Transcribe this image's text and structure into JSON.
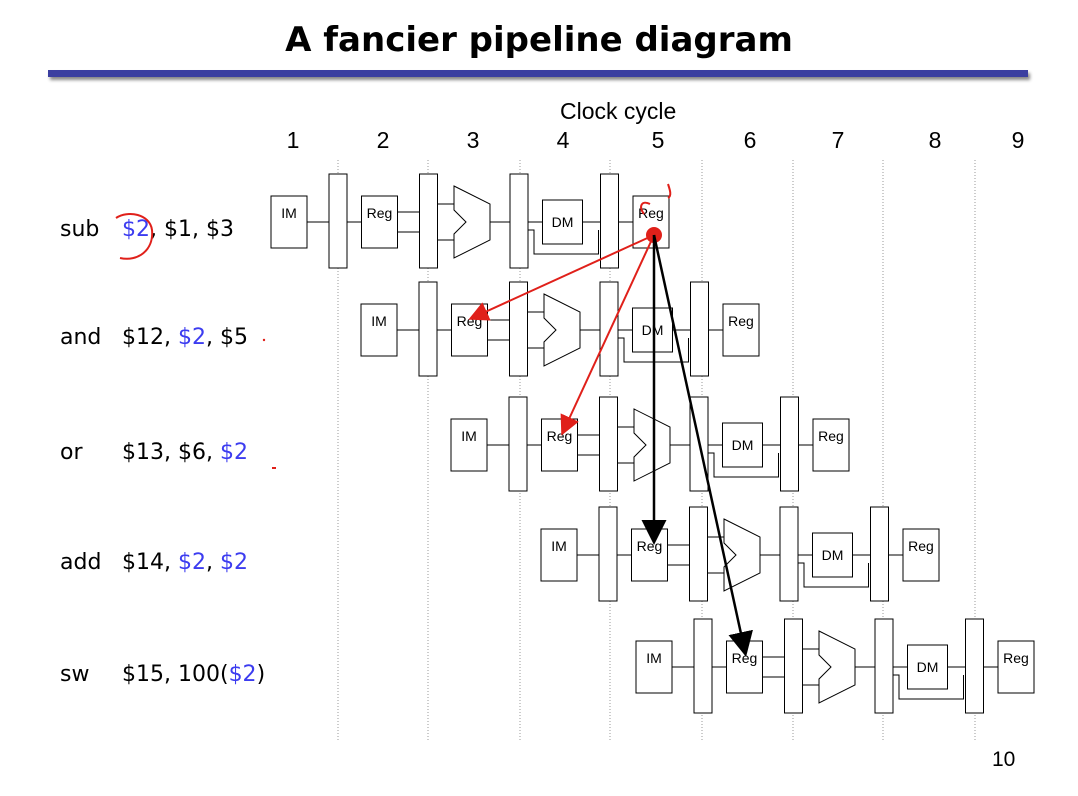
{
  "title": "A fancier pipeline diagram",
  "axis_title": "Clock cycle",
  "cycles": [
    "1",
    "2",
    "3",
    "4",
    "5",
    "6",
    "7",
    "8",
    "9"
  ],
  "instructions": [
    {
      "op": "sub",
      "operands": [
        {
          "text": "$2",
          "hl": true
        },
        {
          "text": ", $1, $3",
          "hl": false
        }
      ]
    },
    {
      "op": "and",
      "operands": [
        {
          "text": "$12, ",
          "hl": false
        },
        {
          "text": "$2",
          "hl": true
        },
        {
          "text": ", $5",
          "hl": false
        }
      ]
    },
    {
      "op": "or",
      "operands": [
        {
          "text": "$13, $6, ",
          "hl": false
        },
        {
          "text": "$2",
          "hl": true
        }
      ]
    },
    {
      "op": "add",
      "operands": [
        {
          "text": "$14, ",
          "hl": false
        },
        {
          "text": "$2",
          "hl": true
        },
        {
          "text": ", ",
          "hl": false
        },
        {
          "text": "$2",
          "hl": true
        }
      ]
    },
    {
      "op": "sw",
      "operands": [
        {
          "text": "$15, 100(",
          "hl": false
        },
        {
          "text": "$2",
          "hl": true
        },
        {
          "text": ")",
          "hl": false
        }
      ]
    }
  ],
  "stage_labels": {
    "im": "IM",
    "reg": "Reg",
    "dm": "DM"
  },
  "page_number": "10",
  "colors": {
    "highlight": "#3c3cf0",
    "rule": "#3b3fa0",
    "annotation": "#e0201a",
    "arrow_black": "#000000"
  }
}
